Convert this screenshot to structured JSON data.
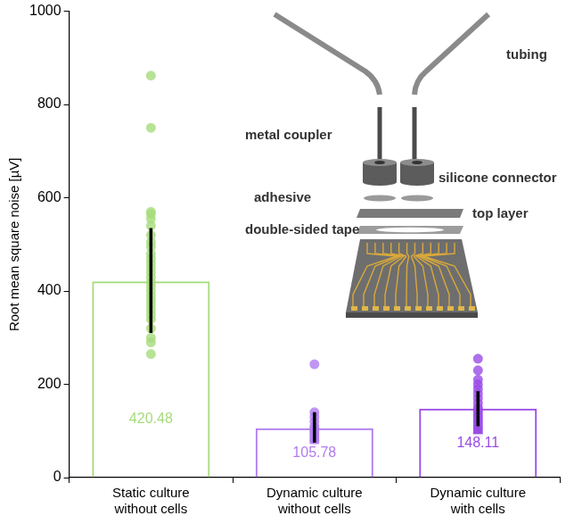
{
  "chart_data": {
    "type": "bar",
    "y_label": "Root mean square noise [µV]",
    "categories": [
      "Static culture without cells",
      "Dynamic culture without cells",
      "Dynamic culture with cells"
    ],
    "values": [
      420.48,
      105.78,
      148.11
    ],
    "data_labels": true,
    "colors": [
      "#a6dc7c",
      "#b07cf0",
      "#9a4ce6"
    ],
    "error_low": [
      310,
      75,
      110
    ],
    "error_high": [
      535,
      140,
      185
    ],
    "points": [
      [
        862,
        750,
        570,
        565,
        555,
        540,
        520,
        505,
        495,
        480,
        470,
        460,
        450,
        440,
        430,
        420,
        410,
        400,
        390,
        380,
        370,
        360,
        350,
        340,
        320,
        300,
        290,
        265
      ],
      [
        243,
        140,
        130,
        120,
        110,
        105,
        100,
        95,
        90,
        85,
        80,
        75
      ],
      [
        255,
        230,
        210,
        200,
        190,
        180,
        170,
        160,
        150,
        145,
        140,
        135,
        130,
        125,
        120,
        115,
        110,
        105,
        100,
        95,
        90
      ]
    ],
    "ylim": [
      0,
      1000
    ],
    "yticks": [
      0,
      200,
      400,
      600,
      800,
      1000
    ],
    "grid": false,
    "annotations": [
      "tubing",
      "metal coupler",
      "silicone connector",
      "adhesive",
      "top layer",
      "double-sided tape"
    ]
  }
}
